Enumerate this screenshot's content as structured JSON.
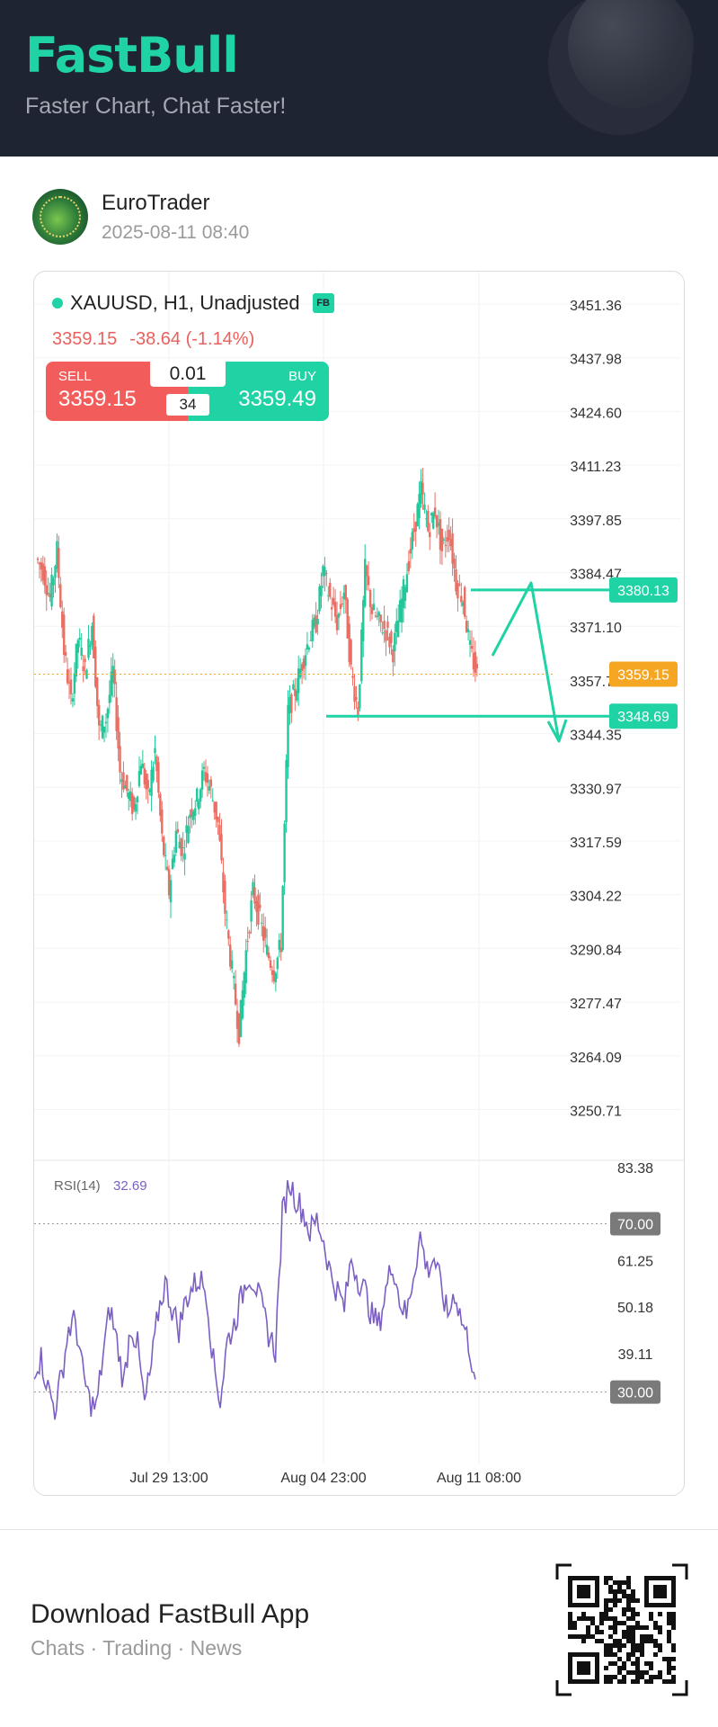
{
  "header": {
    "logo": "FastBull",
    "slogan": "Faster Chart, Chat Faster!"
  },
  "post": {
    "username": "EuroTrader",
    "timestamp": "2025-08-11 08:40"
  },
  "chart_header": {
    "symbol": "XAUUSD, H1, Unadjusted",
    "badge": "FB",
    "last": "3359.15",
    "change": "-38.64 (-1.14%)"
  },
  "trade": {
    "sell_label": "SELL",
    "sell_price": "3359.15",
    "buy_label": "BUY",
    "buy_price": "3359.49",
    "lot": "0.01",
    "spread": "34"
  },
  "chart_data": [
    {
      "type": "candlestick",
      "price_ticks": [
        "3451.36",
        "3437.98",
        "3424.60",
        "3411.23",
        "3397.85",
        "3384.47",
        "3371.10",
        "3357.72",
        "3344.35",
        "3330.97",
        "3317.59",
        "3304.22",
        "3290.84",
        "3277.47",
        "3264.09",
        "3250.71"
      ],
      "ylim": [
        3250.71,
        3451.36
      ],
      "x_ticks": [
        "Jul 29 13:00",
        "Aug 04 23:00",
        "Aug 11 08:00"
      ],
      "price_tags": [
        {
          "value": "3380.13",
          "color": "#1fd3a5"
        },
        {
          "value": "3359.15",
          "color": "#f5a623"
        },
        {
          "value": "3348.69",
          "color": "#1fd3a5"
        }
      ],
      "close_path": [
        3385,
        3378,
        3390,
        3365,
        3352,
        3368,
        3360,
        3372,
        3345,
        3348,
        3360,
        3335,
        3330,
        3325,
        3338,
        3328,
        3340,
        3318,
        3305,
        3320,
        3315,
        3325,
        3328,
        3335,
        3330,
        3322,
        3300,
        3285,
        3270,
        3290,
        3305,
        3298,
        3290,
        3285,
        3292,
        3350,
        3355,
        3362,
        3368,
        3372,
        3385,
        3378,
        3372,
        3380,
        3360,
        3350,
        3385,
        3375,
        3372,
        3370,
        3365,
        3375,
        3385,
        3395,
        3405,
        3395,
        3400,
        3390,
        3395,
        3382,
        3378,
        3365,
        3359
      ],
      "annotations": {
        "resistance": 3380.13,
        "support": 3348.69
      }
    },
    {
      "type": "line",
      "label": "RSI(14)",
      "value": "32.69",
      "ticks": [
        "83.38",
        "70.00",
        "61.25",
        "50.18",
        "39.11",
        "30.00"
      ],
      "ylim": [
        22,
        83.38
      ],
      "levels": [
        "70.00",
        "30.00"
      ],
      "values": [
        36,
        38,
        31,
        26,
        34,
        45,
        47,
        35,
        28,
        26,
        39,
        50,
        42,
        32,
        46,
        41,
        27,
        36,
        49,
        56,
        50,
        45,
        52,
        55,
        57,
        54,
        37,
        28,
        42,
        46,
        52,
        58,
        56,
        50,
        44,
        40,
        72,
        80,
        76,
        73,
        68,
        71,
        66,
        58,
        54,
        50,
        62,
        57,
        54,
        48,
        46,
        54,
        61,
        52,
        48,
        58,
        67,
        59,
        62,
        55,
        48,
        54,
        47,
        42,
        33
      ]
    }
  ],
  "footer": {
    "title": "Download FastBull App",
    "subtitle": "Chats · Trading · News"
  }
}
